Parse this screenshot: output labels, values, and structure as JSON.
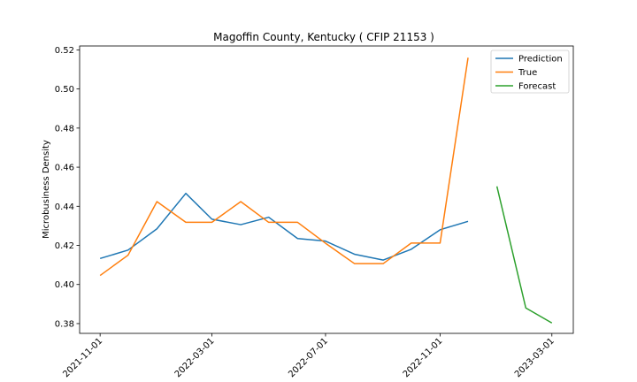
{
  "chart_data": {
    "type": "line",
    "title": "Magoffin County, Kentucky ( CFIP 21153 )",
    "xlabel": "",
    "ylabel": "Microbusiness Density",
    "ylim": [
      0.375,
      0.522
    ],
    "yticks": [
      0.38,
      0.4,
      0.42,
      0.44,
      0.46,
      0.48,
      0.5,
      0.52
    ],
    "ytick_labels": [
      "0.38",
      "0.40",
      "0.42",
      "0.44",
      "0.46",
      "0.48",
      "0.50",
      "0.52"
    ],
    "xlim": [
      "2021-10-10",
      "2023-03-24"
    ],
    "xticks": [
      "2021-11-01",
      "2022-03-01",
      "2022-07-01",
      "2022-11-01",
      "2023-03-01"
    ],
    "grid": false,
    "legend": "top-right",
    "series": [
      {
        "name": "Prediction",
        "color": "#1f77b4",
        "x": [
          "2021-11-01",
          "2021-12-01",
          "2022-01-01",
          "2022-02-01",
          "2022-03-01",
          "2022-04-01",
          "2022-05-01",
          "2022-06-01",
          "2022-07-01",
          "2022-08-01",
          "2022-09-01",
          "2022-10-01",
          "2022-11-01",
          "2022-12-01"
        ],
        "values": [
          0.4133,
          0.4176,
          0.4285,
          0.4466,
          0.4334,
          0.4306,
          0.4344,
          0.4235,
          0.4222,
          0.4155,
          0.4125,
          0.418,
          0.428,
          0.4323
        ]
      },
      {
        "name": "True",
        "color": "#ff7f0e",
        "x": [
          "2021-11-01",
          "2021-12-01",
          "2022-01-01",
          "2022-02-01",
          "2022-03-01",
          "2022-04-01",
          "2022-05-01",
          "2022-06-01",
          "2022-07-01",
          "2022-08-01",
          "2022-09-01",
          "2022-10-01",
          "2022-11-01",
          "2022-12-01"
        ],
        "values": [
          0.4046,
          0.415,
          0.4424,
          0.4318,
          0.4318,
          0.4424,
          0.4318,
          0.4318,
          0.4211,
          0.4107,
          0.4107,
          0.4212,
          0.4212,
          0.516
        ]
      },
      {
        "name": "Forecast",
        "color": "#2ca02c",
        "x": [
          "2023-01-01",
          "2023-02-01",
          "2023-03-01"
        ],
        "values": [
          0.4502,
          0.388,
          0.3803
        ]
      }
    ]
  }
}
